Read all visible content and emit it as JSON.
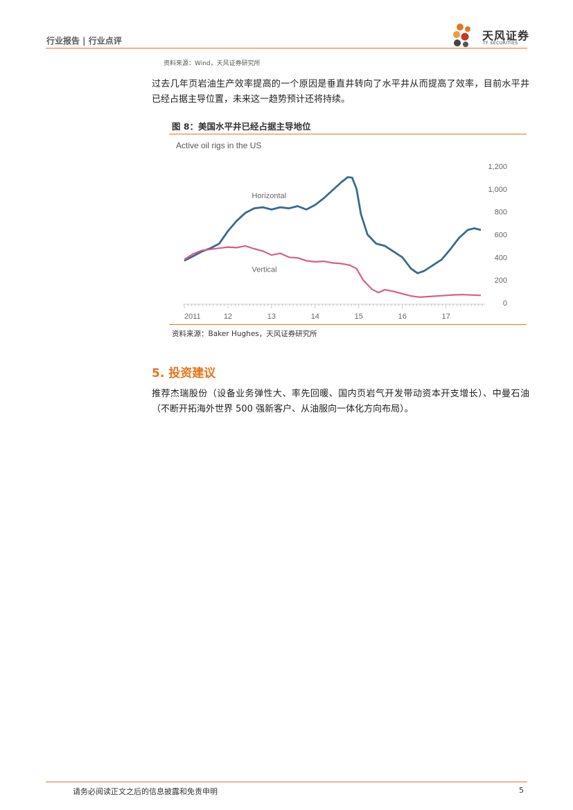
{
  "header": {
    "left_text": "行业报告 | 行业点评",
    "logo_cn": "天风证券",
    "logo_en": "TF SECURITIES"
  },
  "source_note_top": "资料来源：Wind，天风证券研究所",
  "paragraph_1": "过去几年页岩油生产效率提高的一个原因是垂直井转向了水平井从而提高了效率，目前水平井已经占据主导位置，未来这一趋势预计还将持续。",
  "figure": {
    "title": "图 8：美国水平井已经占据主导地位",
    "source": "资料来源：Baker Hughes，天风证券研究所"
  },
  "section_heading": "5. 投资建议",
  "paragraph_2": "推荐杰瑞股份（设备业务弹性大、率先回暖、国内页岩气开发带动资本开支增长）、中曼石油（不断开拓海外世界 500 强新客户、从油服向一体化方向布局）。",
  "footer": {
    "disclaimer": "请务必阅读正文之后的信息披露和免责申明",
    "page_number": "5"
  },
  "colors": {
    "accent": "#e8741b",
    "horizontal_series": "#3a6a8c",
    "vertical_series": "#d85c8a"
  },
  "chart_data": {
    "type": "line",
    "title": "Active oil rigs in the US",
    "xlabel": "",
    "ylabel": "",
    "x_ticks": [
      "2011",
      "12",
      "13",
      "14",
      "15",
      "16",
      "17"
    ],
    "y_ticks": [
      "0",
      "200",
      "400",
      "600",
      "800",
      "1,000",
      "1,200"
    ],
    "xlim": [
      2011.0,
      2017.8
    ],
    "ylim": [
      0,
      1200
    ],
    "grid": false,
    "series": [
      {
        "name": "Horizontal",
        "points": [
          [
            2011.0,
            370
          ],
          [
            2011.2,
            410
          ],
          [
            2011.4,
            450
          ],
          [
            2011.6,
            480
          ],
          [
            2011.8,
            520
          ],
          [
            2012.0,
            630
          ],
          [
            2012.2,
            720
          ],
          [
            2012.4,
            790
          ],
          [
            2012.6,
            830
          ],
          [
            2012.8,
            840
          ],
          [
            2013.0,
            820
          ],
          [
            2013.2,
            840
          ],
          [
            2013.4,
            830
          ],
          [
            2013.6,
            850
          ],
          [
            2013.8,
            820
          ],
          [
            2014.0,
            860
          ],
          [
            2014.2,
            920
          ],
          [
            2014.4,
            990
          ],
          [
            2014.6,
            1060
          ],
          [
            2014.75,
            1105
          ],
          [
            2014.85,
            1100
          ],
          [
            2014.95,
            1000
          ],
          [
            2015.05,
            780
          ],
          [
            2015.2,
            600
          ],
          [
            2015.4,
            520
          ],
          [
            2015.6,
            500
          ],
          [
            2015.8,
            450
          ],
          [
            2016.0,
            400
          ],
          [
            2016.2,
            300
          ],
          [
            2016.35,
            260
          ],
          [
            2016.5,
            280
          ],
          [
            2016.7,
            330
          ],
          [
            2016.9,
            380
          ],
          [
            2017.1,
            470
          ],
          [
            2017.3,
            570
          ],
          [
            2017.5,
            640
          ],
          [
            2017.65,
            655
          ],
          [
            2017.8,
            640
          ]
        ]
      },
      {
        "name": "Vertical",
        "points": [
          [
            2011.0,
            380
          ],
          [
            2011.2,
            430
          ],
          [
            2011.4,
            460
          ],
          [
            2011.6,
            470
          ],
          [
            2011.8,
            480
          ],
          [
            2012.0,
            490
          ],
          [
            2012.2,
            485
          ],
          [
            2012.4,
            500
          ],
          [
            2012.6,
            475
          ],
          [
            2012.8,
            455
          ],
          [
            2013.0,
            420
          ],
          [
            2013.2,
            435
          ],
          [
            2013.4,
            400
          ],
          [
            2013.6,
            395
          ],
          [
            2013.8,
            370
          ],
          [
            2014.0,
            360
          ],
          [
            2014.2,
            365
          ],
          [
            2014.4,
            350
          ],
          [
            2014.6,
            345
          ],
          [
            2014.8,
            330
          ],
          [
            2014.95,
            300
          ],
          [
            2015.1,
            200
          ],
          [
            2015.3,
            120
          ],
          [
            2015.45,
            90
          ],
          [
            2015.6,
            115
          ],
          [
            2015.8,
            100
          ],
          [
            2016.0,
            80
          ],
          [
            2016.2,
            60
          ],
          [
            2016.4,
            50
          ],
          [
            2016.6,
            55
          ],
          [
            2016.8,
            60
          ],
          [
            2017.0,
            65
          ],
          [
            2017.2,
            70
          ],
          [
            2017.4,
            72
          ],
          [
            2017.6,
            68
          ],
          [
            2017.8,
            65
          ]
        ]
      }
    ]
  }
}
